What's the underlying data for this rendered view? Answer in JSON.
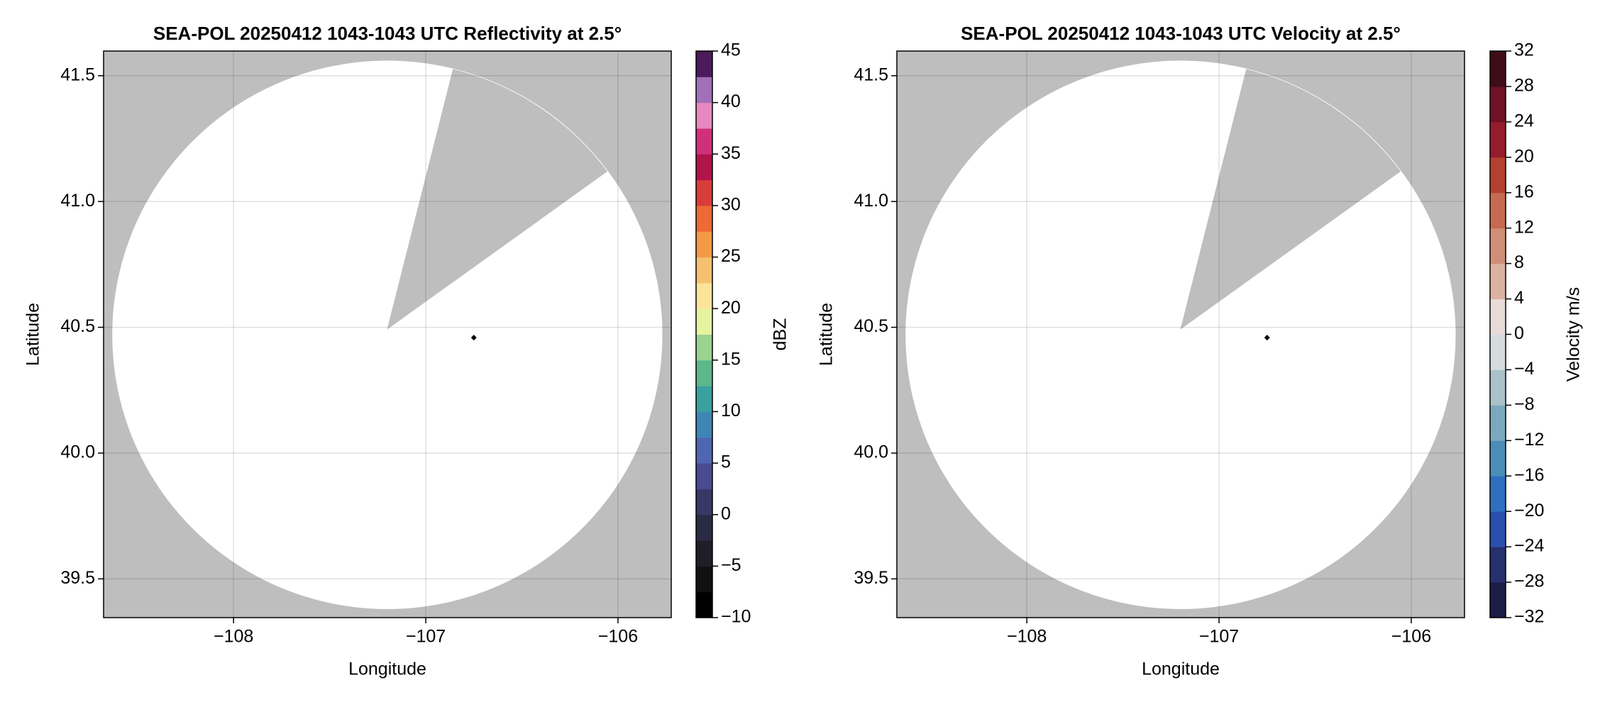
{
  "chart_data": [
    {
      "type": "radar",
      "title": "SEA-POL 20250412 1043-1043 UTC Reflectivity at 2.5°",
      "xlabel": "Longitude",
      "ylabel": "Latitude",
      "xlim": [
        -108.676,
        -105.723
      ],
      "ylim": [
        39.346,
        41.598
      ],
      "xticks": [
        {
          "value": -108,
          "label": "−108"
        },
        {
          "value": -107,
          "label": "−107"
        },
        {
          "value": -106,
          "label": "−106"
        }
      ],
      "yticks": [
        39.5,
        {
          "value": 40,
          "label": "40.0"
        },
        40.5,
        {
          "value": 41,
          "label": "41.0"
        },
        41.5
      ],
      "grid": true,
      "background": "#bebebe",
      "coverage": {
        "color": "#ffffff",
        "center": [
          -107.2,
          40.47
        ],
        "radius": [
          1.431,
          1.09
        ]
      },
      "blocked_sector": {
        "apex": [
          -107.197,
          40.496
        ],
        "from": [
          -106.857,
          41.524
        ],
        "to": [
          -106.059,
          41.12
        ]
      },
      "site": {
        "x": -106.75,
        "y": 40.459,
        "color": "#000000"
      },
      "colorbar": {
        "label": "dBZ",
        "lim": [
          -10,
          45
        ],
        "ticks": [
          {
            "value": -10,
            "label": "−10"
          },
          {
            "value": -5,
            "label": "−5"
          },
          0,
          5,
          10,
          15,
          20,
          25,
          30,
          35,
          40,
          45
        ],
        "colors": [
          "#000000",
          "#111114",
          "#1e1e28",
          "#2b2a45",
          "#393766",
          "#4a4a90",
          "#4f66b0",
          "#3f86b4",
          "#3aa0a0",
          "#5cb88a",
          "#9ad28e",
          "#e6f3a0",
          "#fbe49a",
          "#f5c070",
          "#f49a45",
          "#ec6a35",
          "#d93d3a",
          "#b01448",
          "#d0307a",
          "#e888c0",
          "#a070b8",
          "#4a1a5a"
        ]
      }
    },
    {
      "type": "radar",
      "title": "SEA-POL 20250412 1043-1043 UTC Velocity at 2.5°",
      "xlabel": "Longitude",
      "ylabel": "Latitude",
      "xlim": [
        -108.676,
        -105.723
      ],
      "ylim": [
        39.346,
        41.598
      ],
      "xticks": [
        {
          "value": -108,
          "label": "−108"
        },
        {
          "value": -107,
          "label": "−107"
        },
        {
          "value": -106,
          "label": "−106"
        }
      ],
      "yticks": [
        39.5,
        {
          "value": 40,
          "label": "40.0"
        },
        40.5,
        {
          "value": 41,
          "label": "41.0"
        },
        41.5
      ],
      "grid": true,
      "background": "#bebebe",
      "coverage": {
        "color": "#ffffff",
        "center": [
          -107.2,
          40.47
        ],
        "radius": [
          1.431,
          1.09
        ]
      },
      "blocked_sector": {
        "apex": [
          -107.197,
          40.496
        ],
        "from": [
          -106.857,
          41.524
        ],
        "to": [
          -106.059,
          41.12
        ]
      },
      "site": {
        "x": -106.75,
        "y": 40.459,
        "color": "#000000"
      },
      "colorbar": {
        "label": "Velocity m/s",
        "lim": [
          -32,
          32
        ],
        "ticks": [
          {
            "value": -32,
            "label": "−32"
          },
          {
            "value": -28,
            "label": "−28"
          },
          {
            "value": -24,
            "label": "−24"
          },
          {
            "value": -20,
            "label": "−20"
          },
          {
            "value": -16,
            "label": "−16"
          },
          {
            "value": -12,
            "label": "−12"
          },
          {
            "value": -8,
            "label": "−8"
          },
          {
            "value": -4,
            "label": "−4"
          },
          0,
          4,
          8,
          12,
          16,
          20,
          24,
          28,
          32
        ],
        "colors": [
          "#1a1d45",
          "#27306e",
          "#2a4fad",
          "#2f6fbf",
          "#4a8db8",
          "#7ba8bc",
          "#a9c1c9",
          "#d5dcdf",
          "#e8dad6",
          "#dcb1a0",
          "#d08e77",
          "#c56a50",
          "#b2412d",
          "#961b2c",
          "#6e1226",
          "#3f0c18"
        ]
      }
    }
  ]
}
